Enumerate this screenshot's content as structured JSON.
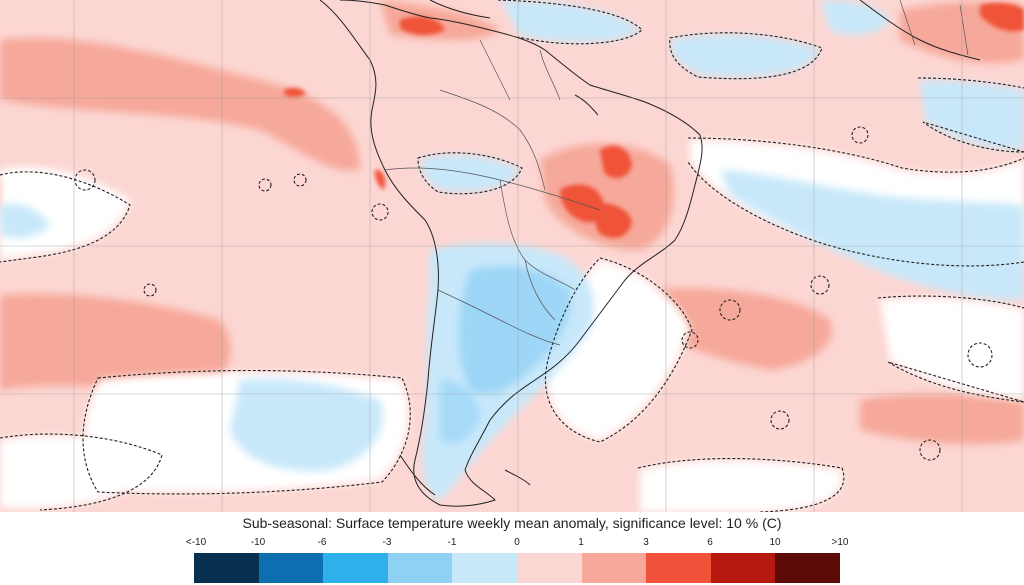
{
  "map": {
    "region": "South America",
    "variable": "Surface temperature weekly mean anomaly",
    "unit": "C"
  },
  "legend": {
    "title": "Sub-seasonal: Surface temperature weekly mean anomaly, significance level: 10 % (C)",
    "tick_labels": [
      "<-10",
      "-10",
      "-6",
      "-3",
      "-1",
      "0",
      "1",
      "3",
      "6",
      "10",
      ">10"
    ],
    "colors": [
      "#08304e",
      "#0b6fb0",
      "#2fb0ea",
      "#8fd0f5",
      "#c8e8fa",
      "#fcd6d2",
      "#f6a89a",
      "#ef5238",
      "#b5180f",
      "#5c0a05"
    ]
  }
}
